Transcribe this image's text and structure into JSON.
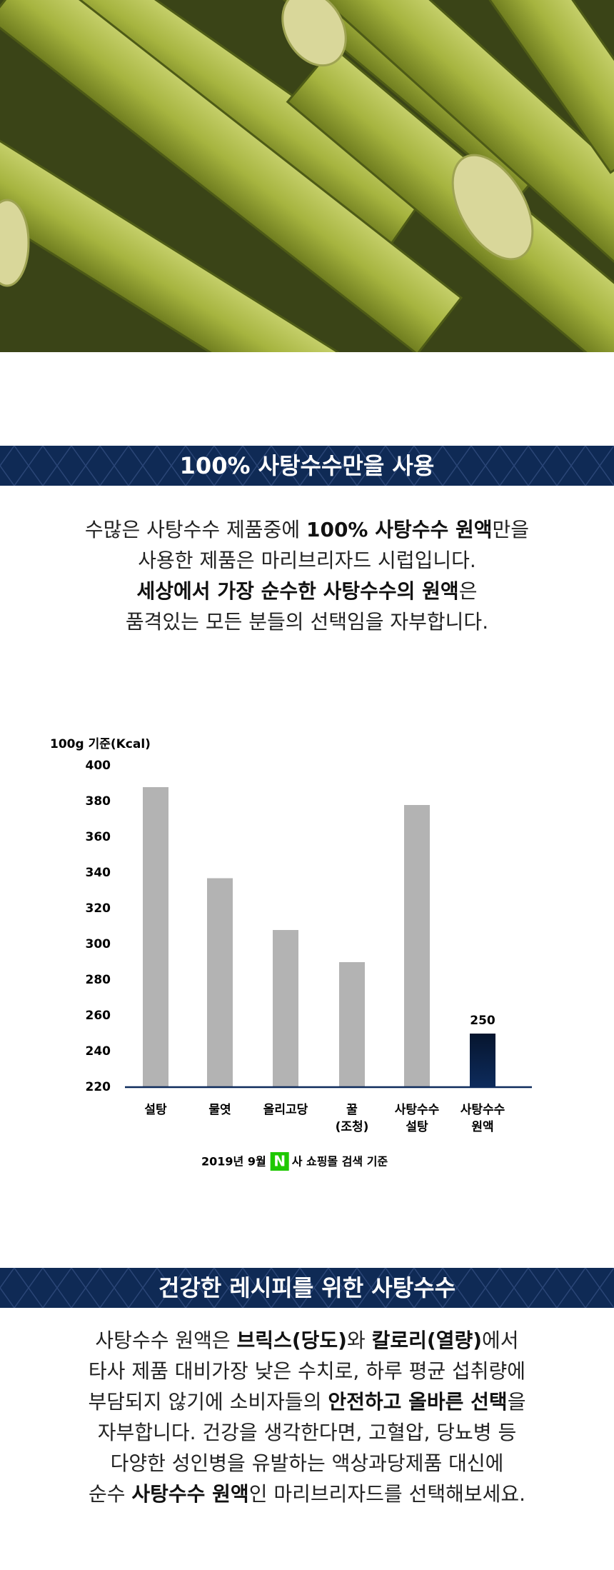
{
  "banner1": {
    "title": "100% 사탕수수만을 사용"
  },
  "intro": {
    "lines": [
      [
        {
          "text": "수많은 사탕수수 제품중에 ",
          "bold": false
        },
        {
          "text": "100% 사탕수수 원액",
          "bold": true
        },
        {
          "text": "만을",
          "bold": false
        }
      ],
      [
        {
          "text": "사용한 제품은 마리브리자드 시럽입니다.",
          "bold": false
        }
      ],
      [
        {
          "text": "세상에서 가장 순수한 사탕수수의 원액",
          "bold": true
        },
        {
          "text": "은",
          "bold": false
        }
      ],
      [
        {
          "text": "품격있는 모든 분들의 선택임을 자부합니다.",
          "bold": false
        }
      ]
    ]
  },
  "chart_data": {
    "type": "bar",
    "y_label": "100g 기준(Kcal)",
    "categories": [
      [
        "설탕"
      ],
      [
        "물엿"
      ],
      [
        "올리고당"
      ],
      [
        "꿀",
        "(조청)"
      ],
      [
        "사탕수수",
        "설탕"
      ],
      [
        "사탕수수",
        "원액"
      ]
    ],
    "values": [
      388,
      337,
      308,
      290,
      378,
      250
    ],
    "colors": [
      "#b3b3b3",
      "#b3b3b3",
      "#b3b3b3",
      "#b3b3b3",
      "#b3b3b3",
      "#0d2b5c"
    ],
    "show_value_label": [
      false,
      false,
      false,
      false,
      false,
      true
    ],
    "ylim": [
      220,
      400
    ],
    "yticks": [
      220,
      240,
      260,
      280,
      300,
      320,
      340,
      360,
      380,
      400
    ],
    "grid": false,
    "source": [
      {
        "text": "2019년 9월 ",
        "icon": false
      },
      {
        "text": "N",
        "icon": true
      },
      {
        "text": "사 쇼핑몰 검색 기준",
        "icon": false
      }
    ]
  },
  "banner2": {
    "title": "건강한 레시피를 위한 사탕수수"
  },
  "body": {
    "lines": [
      [
        {
          "text": "사탕수수 원액은 ",
          "bold": false
        },
        {
          "text": "브릭스(당도)",
          "bold": true
        },
        {
          "text": "와 ",
          "bold": false
        },
        {
          "text": "칼로리(열량)",
          "bold": true
        },
        {
          "text": "에서",
          "bold": false
        }
      ],
      [
        {
          "text": "타사 제품 대비가장 낮은 수치로, 하루 평균 섭취량에",
          "bold": false
        }
      ],
      [
        {
          "text": "부담되지 않기에 소비자들의 ",
          "bold": false
        },
        {
          "text": "안전하고 올바른 선택",
          "bold": true
        },
        {
          "text": "을",
          "bold": false
        }
      ],
      [
        {
          "text": "자부합니다. 건강을 생각한다면, 고혈압, 당뇨병 등",
          "bold": false
        }
      ],
      [
        {
          "text": "다양한 성인병을 유발하는 액상과당제품 대신에",
          "bold": false
        }
      ],
      [
        {
          "text": "순수 ",
          "bold": false
        },
        {
          "text": "사탕수수 원액",
          "bold": true
        },
        {
          "text": "인 마리브리자드를 선택해보세요.",
          "bold": false
        }
      ]
    ]
  }
}
